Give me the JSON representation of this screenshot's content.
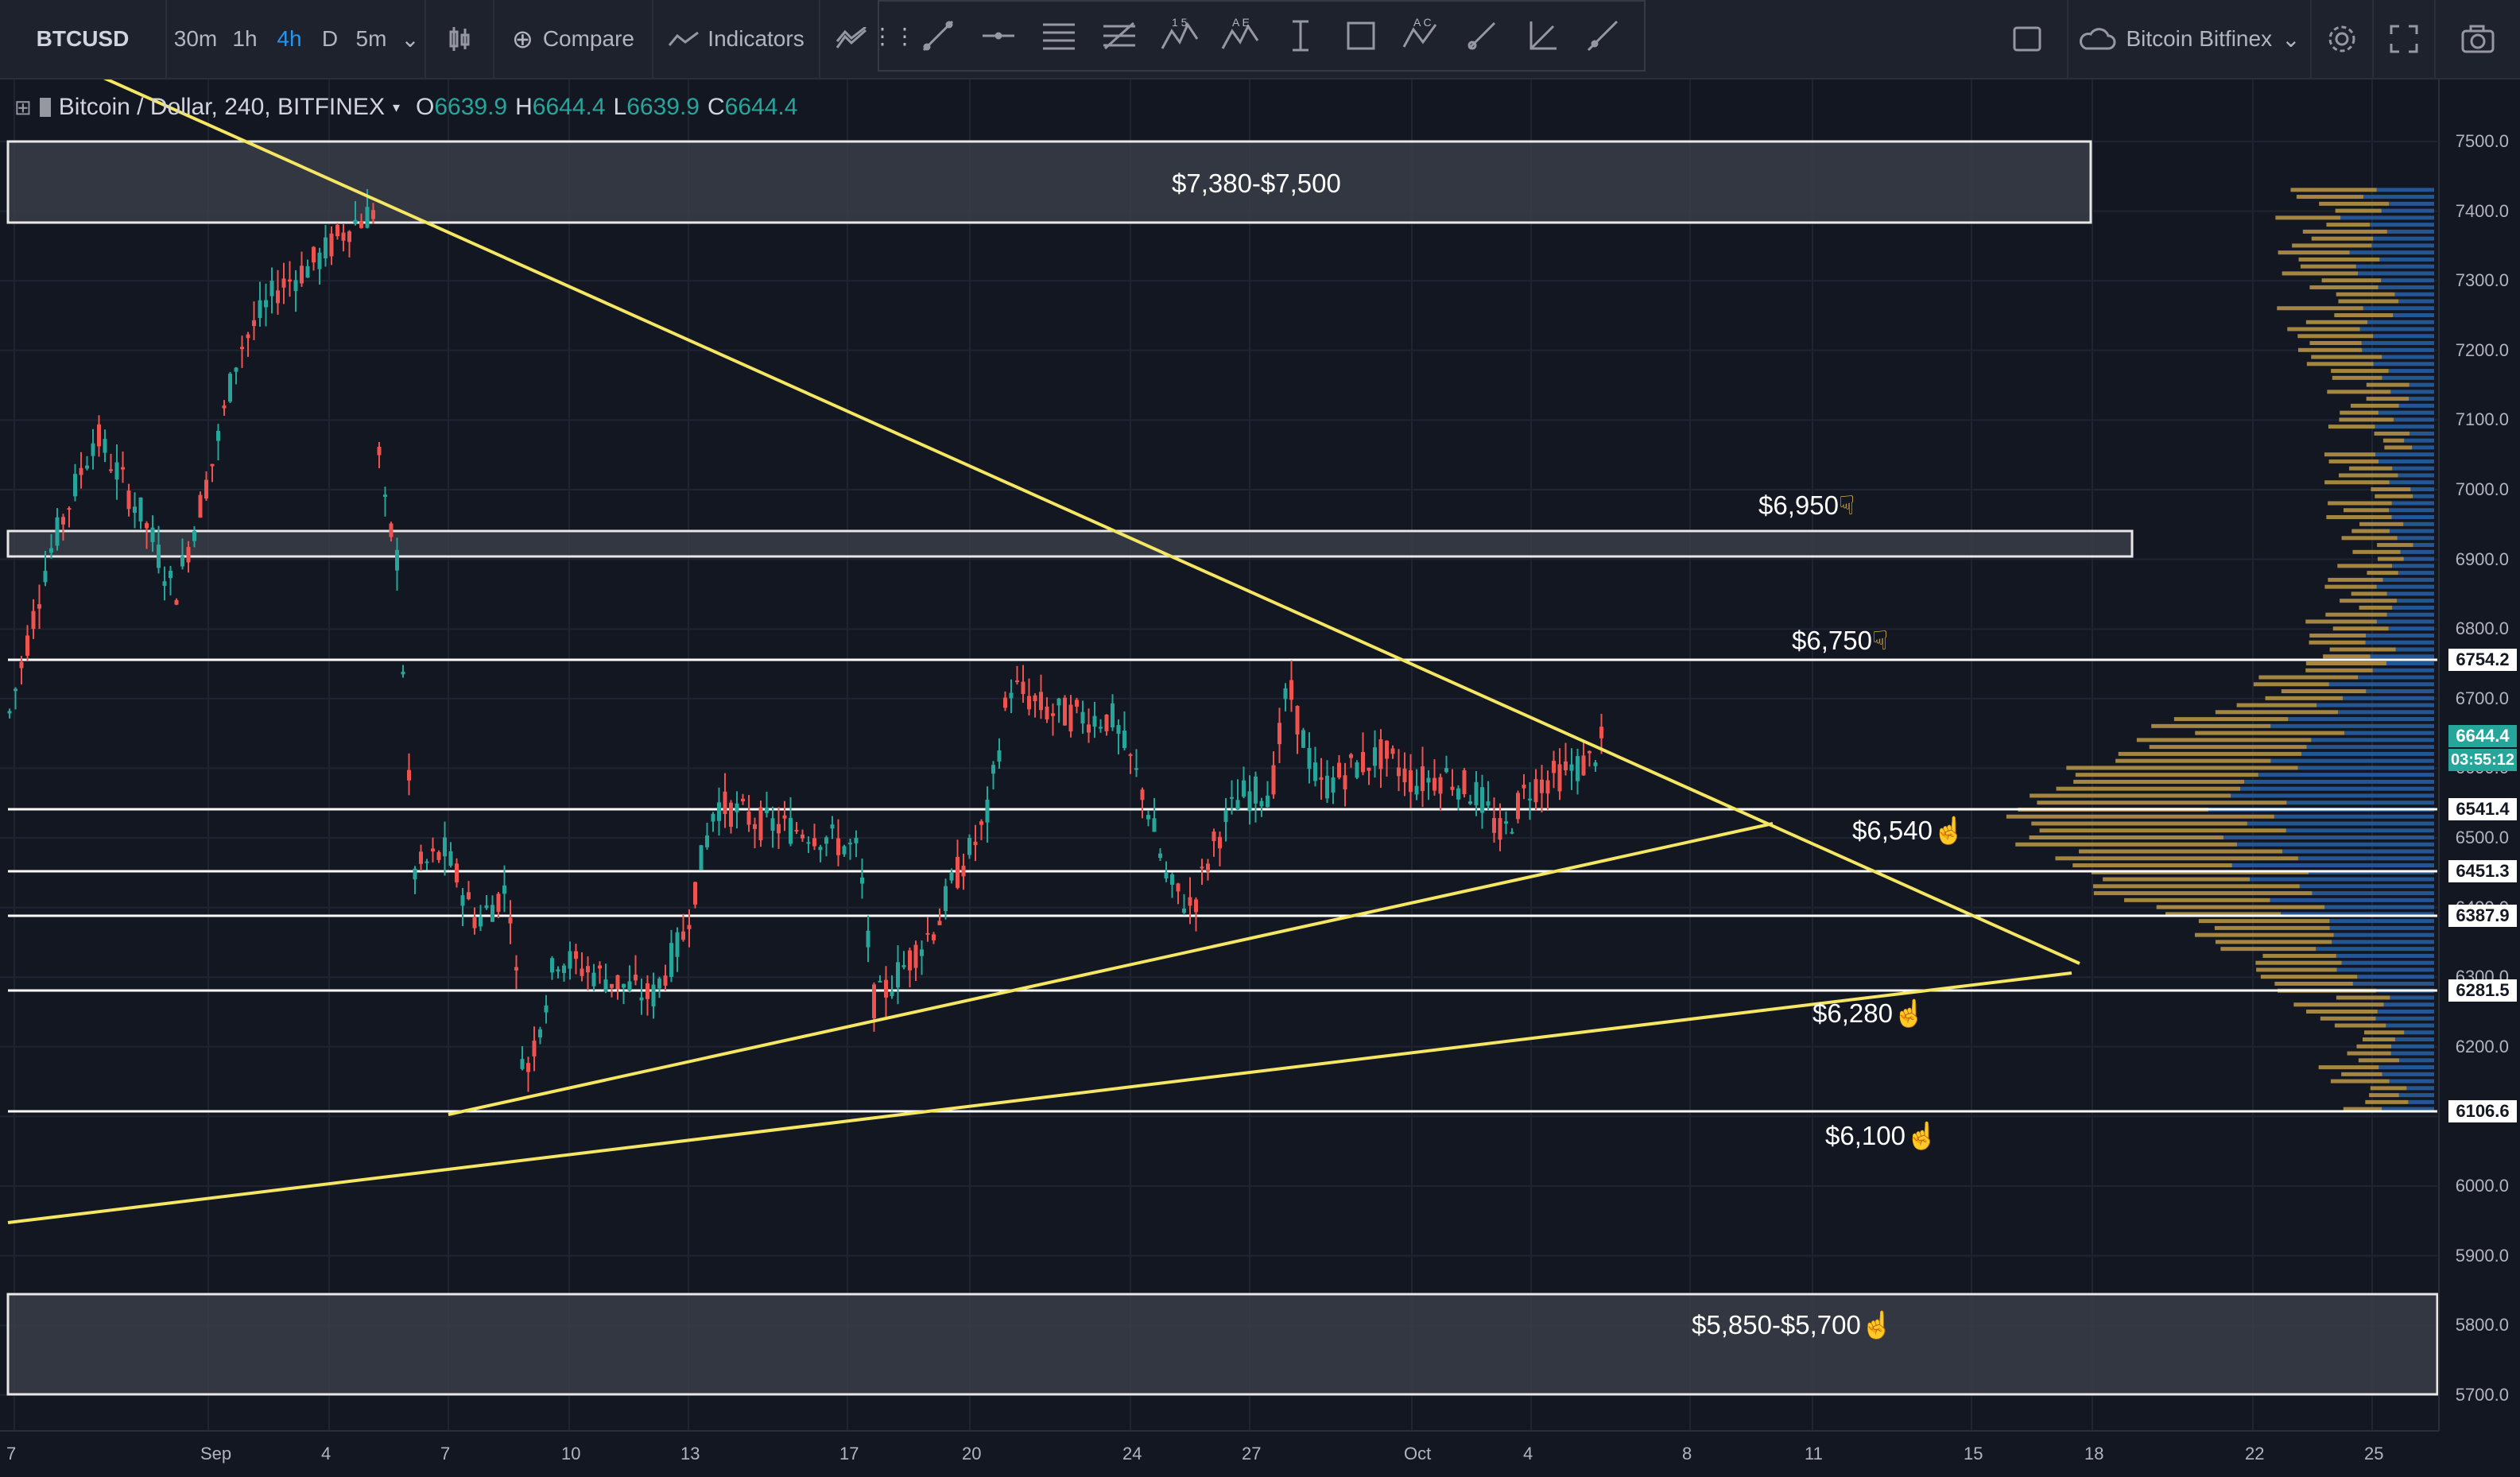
{
  "toolbar": {
    "symbol": "BTCUSD",
    "intervals": [
      "30m",
      "1h",
      "4h",
      "D",
      "5m"
    ],
    "active_interval": "4h",
    "compare_label": "Compare",
    "indicators_label": "Indicators",
    "exchange_label": "Bitcoin Bitfinex",
    "drawing_badges": [
      "1 5",
      "A E",
      "A C"
    ]
  },
  "legend": {
    "title": "Bitcoin / Dollar, 240, BITFINEX",
    "o_key": "O",
    "o_val": "6639.9",
    "h_key": "H",
    "h_val": "6644.4",
    "l_key": "L",
    "l_val": "6639.9",
    "c_key": "C",
    "c_val": "6644.4"
  },
  "annotations": {
    "zone_top": "$7,380-$7,500",
    "level_6950": "$6,950",
    "level_6750": "$6,750",
    "level_6540": "$6,540",
    "level_6280": "$6,280",
    "level_6100": "$6,100",
    "zone_bottom": "$5,850-$5,700"
  },
  "price_axis": {
    "ticks": [
      "7500.0",
      "7400.0",
      "7300.0",
      "7200.0",
      "7100.0",
      "7000.0",
      "6900.0",
      "6800.0",
      "6700.0",
      "6600.0",
      "6500.0",
      "6400.0",
      "6300.0",
      "6200.0",
      "6100.0",
      "6000.0",
      "5900.0",
      "5800.0",
      "5700.0"
    ],
    "labels": [
      "6754.2",
      "6644.4",
      "03:55:12",
      "6541.4",
      "6451.3",
      "6387.9",
      "6281.5",
      "6106.6"
    ]
  },
  "time_axis": [
    "7",
    "Sep",
    "4",
    "7",
    "10",
    "13",
    "17",
    "20",
    "24",
    "27",
    "Oct",
    "4",
    "8",
    "11",
    "15",
    "18",
    "22",
    "25"
  ],
  "colors": {
    "up": "#26a69a",
    "down": "#ef5350",
    "trend": "#f5e663",
    "bg": "#131722"
  }
}
